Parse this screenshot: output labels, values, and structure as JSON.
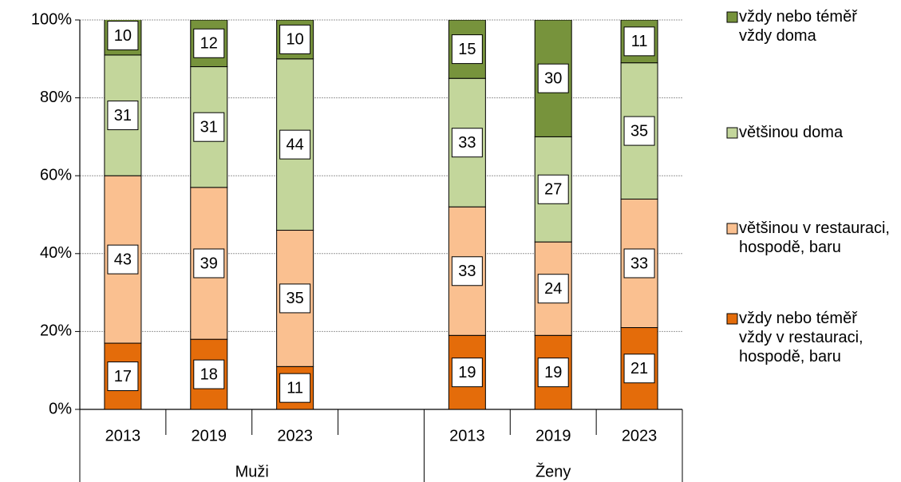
{
  "chart_data": {
    "type": "stacked_bar",
    "categories": [
      "2013",
      "2019",
      "2023",
      null,
      "2013",
      "2019",
      "2023"
    ],
    "groups": [
      "Muži",
      "Ženy"
    ],
    "series": [
      {
        "name": "vždy nebo téměř vždy v restauraci, hospodě, baru",
        "color": "#e46c0a",
        "values": [
          17,
          18,
          11,
          null,
          19,
          19,
          21
        ]
      },
      {
        "name": "většinou v restauraci, hospodě, baru",
        "color": "#fac090",
        "values": [
          43,
          39,
          35,
          null,
          33,
          24,
          33
        ]
      },
      {
        "name": "většinou doma",
        "color": "#c3d69b",
        "values": [
          31,
          31,
          44,
          null,
          33,
          27,
          35
        ]
      },
      {
        "name": "vždy nebo téměř vždy doma",
        "color": "#77933c",
        "values": [
          10,
          12,
          10,
          null,
          15,
          30,
          11
        ]
      }
    ],
    "ylim": [
      0,
      100
    ],
    "yticks": [
      {
        "value": 0,
        "label": "0%"
      },
      {
        "value": 20,
        "label": "20%"
      },
      {
        "value": 40,
        "label": "40%"
      },
      {
        "value": 60,
        "label": "60%"
      },
      {
        "value": 80,
        "label": "80%"
      },
      {
        "value": 100,
        "label": "100%"
      }
    ],
    "grid": true,
    "legend": "right"
  }
}
